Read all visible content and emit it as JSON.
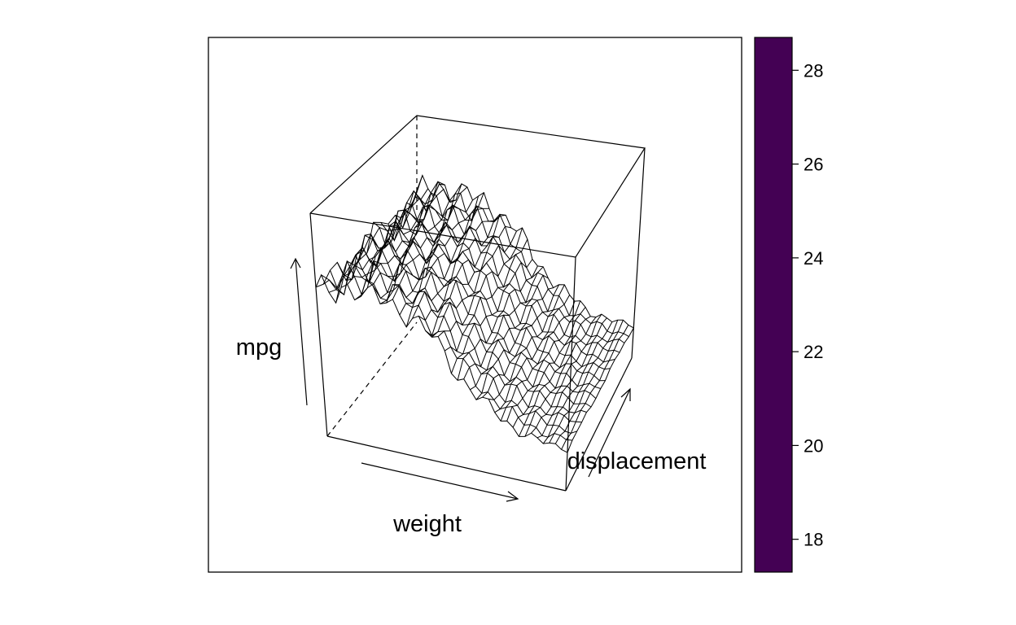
{
  "chart_data": {
    "type": "surface",
    "xlabel": "weight",
    "ylabel": "displacement",
    "zlabel": "mpg",
    "colorkey": {
      "ticks": [
        18,
        20,
        22,
        24,
        26,
        28
      ],
      "range": [
        17.3,
        28.7
      ],
      "fill_color": "#440154"
    },
    "surface_description_rows_weight_levels": 10,
    "surface_z_profile_along_weight": [
      {
        "weight_index": 0,
        "mpg": 24.5
      },
      {
        "weight_index": 1,
        "mpg": 25.3
      },
      {
        "weight_index": 2,
        "mpg": 25.0
      },
      {
        "weight_index": 3,
        "mpg": 24.6
      },
      {
        "weight_index": 4,
        "mpg": 23.6
      },
      {
        "weight_index": 5,
        "mpg": 21.8
      },
      {
        "weight_index": 6,
        "mpg": 20.6
      },
      {
        "weight_index": 7,
        "mpg": 19.8
      },
      {
        "weight_index": 8,
        "mpg": 19.4
      },
      {
        "weight_index": 9,
        "mpg": 19.3
      }
    ]
  },
  "colors": {
    "frame": "#000000",
    "colorkey": "#440154",
    "mesh": "#000000"
  }
}
